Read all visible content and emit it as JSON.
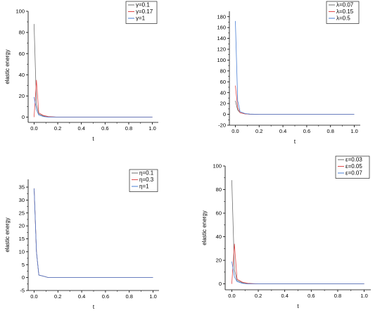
{
  "chart_data": [
    {
      "type": "line",
      "title": "",
      "xlabel": "t",
      "ylabel": "elastic energy",
      "xlim": [
        -0.05,
        1.05
      ],
      "ylim": [
        -5,
        100
      ],
      "xticks": [
        0.0,
        0.2,
        0.4,
        0.6,
        0.8,
        1.0
      ],
      "xtick_labels": [
        "0.0",
        "0.2",
        "0.4",
        "0.6",
        "0.8",
        "1.0"
      ],
      "yticks": [
        0,
        20,
        40,
        60,
        80,
        100
      ],
      "ytick_labels": [
        "0",
        "20",
        "40",
        "60",
        "80",
        "100"
      ],
      "grid": false,
      "legend_position": "top-right",
      "series": [
        {
          "name": "γ=0.1",
          "color": "#6f6f6f",
          "x": [
            0,
            0.02,
            0.04,
            0.08,
            0.12,
            0.2,
            1.0
          ],
          "y": [
            88,
            12,
            3,
            1,
            0.3,
            0,
            0
          ]
        },
        {
          "name": "γ=0.17",
          "color": "#e04b4b",
          "x": [
            0,
            0.02,
            0.04,
            0.08,
            0.12,
            0.2,
            1.0
          ],
          "y": [
            0,
            35,
            4,
            1.5,
            0.5,
            0,
            0
          ]
        },
        {
          "name": "γ=1",
          "color": "#4a7fd4",
          "x": [
            0,
            0.02,
            0.04,
            0.08,
            0.12,
            0.2,
            1.0
          ],
          "y": [
            19,
            7,
            2,
            0.5,
            0,
            0,
            0
          ]
        }
      ]
    },
    {
      "type": "line",
      "title": "",
      "xlabel": "t",
      "ylabel": "",
      "xlim": [
        -0.05,
        1.05
      ],
      "ylim": [
        -20,
        190
      ],
      "xticks": [
        0.0,
        0.2,
        0.4,
        0.6,
        0.8,
        1.0
      ],
      "xtick_labels": [
        "0.0",
        "0.2",
        "0.4",
        "0.6",
        "0.8",
        "1.0"
      ],
      "yticks": [
        -20,
        0,
        20,
        40,
        60,
        80,
        100,
        120,
        140,
        160,
        180
      ],
      "ytick_labels": [
        "-20",
        "0",
        "20",
        "40",
        "60",
        "80",
        "100",
        "120",
        "140",
        "160",
        "180"
      ],
      "grid": false,
      "legend_position": "top-right",
      "series": [
        {
          "name": "λ=0.07",
          "color": "#6f6f6f",
          "x": [
            0,
            0.02,
            0.04,
            0.08,
            0.12,
            0.2,
            1.0
          ],
          "y": [
            25,
            8,
            3,
            1,
            0.3,
            0,
            0
          ]
        },
        {
          "name": "λ=0.15",
          "color": "#e04b4b",
          "x": [
            0,
            0.02,
            0.04,
            0.08,
            0.12,
            0.2,
            1.0
          ],
          "y": [
            53,
            12,
            3,
            1,
            0.3,
            0,
            0
          ]
        },
        {
          "name": "λ=0.5",
          "color": "#4a7fd4",
          "x": [
            0,
            0.02,
            0.04,
            0.08,
            0.12,
            0.2,
            1.0
          ],
          "y": [
            172,
            25,
            5,
            1.5,
            0.5,
            0,
            0
          ]
        }
      ]
    },
    {
      "type": "line",
      "title": "",
      "xlabel": "t",
      "ylabel": "elastic energy",
      "xlim": [
        -0.05,
        1.05
      ],
      "ylim": [
        -5,
        38
      ],
      "xticks": [
        0.0,
        0.2,
        0.4,
        0.6,
        0.8,
        1.0
      ],
      "xtick_labels": [
        "0.0",
        "0.2",
        "0.4",
        "0.6",
        "0.8",
        "1.0"
      ],
      "yticks": [
        -5,
        0,
        5,
        10,
        15,
        20,
        25,
        30,
        35
      ],
      "ytick_labels": [
        "-5",
        "0",
        "5",
        "10",
        "15",
        "20",
        "25",
        "30",
        "35"
      ],
      "grid": false,
      "legend_position": "top-right",
      "series": [
        {
          "name": "η=0.1",
          "color": "#6f6f6f",
          "x": [
            0,
            0.02,
            0.04,
            0.08,
            0.12,
            0.2,
            1.0
          ],
          "y": [
            34.5,
            10,
            1,
            0.5,
            0,
            0,
            0
          ]
        },
        {
          "name": "η=0.3",
          "color": "#e04b4b",
          "x": [
            0,
            0.02,
            0.04,
            0.08,
            0.12,
            0.2,
            1.0
          ],
          "y": [
            34.5,
            10,
            1,
            0.5,
            0,
            0,
            0
          ]
        },
        {
          "name": "η=1",
          "color": "#4a7fd4",
          "x": [
            0,
            0.02,
            0.04,
            0.08,
            0.12,
            0.2,
            1.0
          ],
          "y": [
            34.5,
            10,
            1,
            0.5,
            0,
            0,
            0
          ]
        }
      ]
    },
    {
      "type": "line",
      "title": "",
      "xlabel": "t",
      "ylabel": "elastic energy",
      "xlim": [
        -0.05,
        1.05
      ],
      "ylim": [
        -5,
        100
      ],
      "xticks": [
        0.0,
        0.2,
        0.4,
        0.6,
        0.8,
        1.0
      ],
      "xtick_labels": [
        "0.0",
        "0.2",
        "0.4",
        "0.6",
        "0.8",
        "1.0"
      ],
      "yticks": [
        0,
        20,
        40,
        60,
        80,
        100
      ],
      "ytick_labels": [
        "0",
        "20",
        "40",
        "60",
        "80",
        "100"
      ],
      "grid": false,
      "legend_position": "top-right",
      "series": [
        {
          "name": "ε=0.03",
          "color": "#6f6f6f",
          "x": [
            0,
            0.02,
            0.04,
            0.08,
            0.12,
            0.2,
            1.0
          ],
          "y": [
            88,
            12,
            3,
            1,
            0.3,
            0,
            0
          ]
        },
        {
          "name": "ε=0.05",
          "color": "#e04b4b",
          "x": [
            0,
            0.02,
            0.04,
            0.08,
            0.12,
            0.2,
            1.0
          ],
          "y": [
            0,
            34,
            4,
            1.5,
            0.5,
            0,
            0
          ]
        },
        {
          "name": "ε=0.07",
          "color": "#4a7fd4",
          "x": [
            0,
            0.02,
            0.04,
            0.08,
            0.12,
            0.2,
            1.0
          ],
          "y": [
            19,
            6,
            2,
            0.5,
            0,
            0,
            0
          ]
        }
      ]
    }
  ]
}
